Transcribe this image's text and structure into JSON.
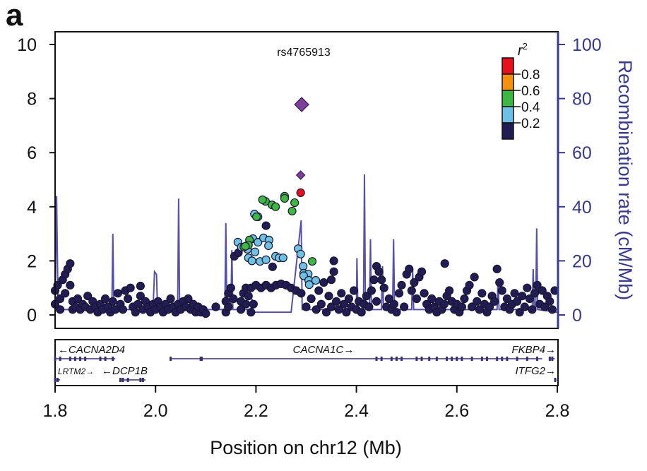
{
  "chart_data": {
    "type": "scatter",
    "panel_label": "a",
    "annotation": "rs4765913",
    "xlabel": "Position on chr12 (Mb)",
    "ylabel_right": "Recombination rate (cM/Mb)",
    "xlim": [
      1.8,
      2.8
    ],
    "ylim": [
      0,
      10.5
    ],
    "ylim_right": [
      0,
      105
    ],
    "xticks": [
      "1.8",
      "2.0",
      "2.2",
      "2.4",
      "2.6",
      "2.8"
    ],
    "yticks": [
      "0",
      "2",
      "4",
      "6",
      "8",
      "10"
    ],
    "yticks_right": [
      "0",
      "20",
      "40",
      "60",
      "80",
      "100"
    ],
    "legend": {
      "title": "r",
      "title_sup": "2",
      "placement": "top-right",
      "labels": [
        "0.8",
        "0.6",
        "0.4",
        "0.2"
      ],
      "colors": [
        "#e8101a",
        "#f5900f",
        "#3db843",
        "#6ec1e4",
        "#221c54"
      ]
    },
    "colors": {
      "diamond": "#7d3f98",
      "recomb": "#5550a8",
      "axis_right": "#3a3a8c"
    },
    "lead_snps": [
      [
        2.291,
        7.78
      ],
      [
        2.289,
        5.17
      ]
    ],
    "series": [
      {
        "r2_bin": "0.8-1.0",
        "color": "#e8101a",
        "points": [
          [
            2.289,
            4.52
          ]
        ]
      },
      {
        "r2_bin": "0.4-0.6",
        "color": "#3db843",
        "points": [
          [
            2.219,
            4.2
          ],
          [
            2.213,
            4.26
          ],
          [
            2.232,
            4.07
          ],
          [
            2.239,
            4.0
          ],
          [
            2.257,
            4.39
          ],
          [
            2.257,
            4.31
          ],
          [
            2.277,
            4.15
          ],
          [
            2.272,
            3.84
          ],
          [
            2.201,
            3.63
          ],
          [
            2.187,
            2.77
          ],
          [
            2.185,
            2.59
          ],
          [
            2.176,
            2.51
          ],
          [
            2.179,
            2.54
          ],
          [
            2.312,
            1.98
          ]
        ]
      },
      {
        "r2_bin": "0.2-0.4",
        "color": "#6ec1e4",
        "points": [
          [
            2.197,
            3.73
          ],
          [
            2.204,
            3.63
          ],
          [
            2.164,
            2.69
          ],
          [
            2.194,
            2.82
          ],
          [
            2.204,
            2.69
          ],
          [
            2.215,
            2.85
          ],
          [
            2.226,
            2.77
          ],
          [
            2.225,
            2.56
          ],
          [
            2.183,
            2.43
          ],
          [
            2.198,
            2.33
          ],
          [
            2.185,
            2.11
          ],
          [
            2.192,
            2.0
          ],
          [
            2.208,
            1.98
          ],
          [
            2.22,
            2.04
          ],
          [
            2.239,
            2.17
          ],
          [
            2.246,
            2.11
          ],
          [
            2.254,
            2.11
          ],
          [
            2.284,
            2.45
          ],
          [
            2.289,
            2.25
          ],
          [
            2.294,
            1.8
          ],
          [
            2.295,
            1.54
          ],
          [
            2.304,
            1.51
          ],
          [
            2.295,
            1.45
          ],
          [
            2.305,
            1.28
          ],
          [
            2.306,
            1.12
          ],
          [
            2.319,
            1.28
          ],
          [
            2.171,
            2.51
          ]
        ]
      },
      {
        "r2_bin": "0.0-0.2",
        "color": "#221c54",
        "points": [
          [
            1.8,
            0.9
          ],
          [
            1.8,
            0.4
          ],
          [
            1.805,
            1.1
          ],
          [
            1.81,
            0.2
          ],
          [
            1.81,
            0.6
          ],
          [
            1.815,
            1.3
          ],
          [
            1.82,
            1.5
          ],
          [
            1.82,
            0.8
          ],
          [
            1.825,
            1.7
          ],
          [
            1.83,
            1.9
          ],
          [
            1.83,
            1.1
          ],
          [
            1.835,
            0.5
          ],
          [
            1.835,
            0.2
          ],
          [
            1.84,
            0.3
          ],
          [
            1.845,
            0.6
          ],
          [
            1.85,
            0.2
          ],
          [
            1.855,
            0.4
          ],
          [
            1.86,
            0.3
          ],
          [
            1.865,
            0.7
          ],
          [
            1.87,
            0.2
          ],
          [
            1.875,
            0.5
          ],
          [
            1.88,
            0.3
          ],
          [
            1.885,
            0.1
          ],
          [
            1.89,
            0.4
          ],
          [
            1.895,
            0.2
          ],
          [
            1.9,
            0.6
          ],
          [
            1.905,
            0.3
          ],
          [
            1.91,
            0.1
          ],
          [
            1.915,
            0.5
          ],
          [
            1.92,
            0.2
          ],
          [
            1.925,
            0.8
          ],
          [
            1.93,
            0.4
          ],
          [
            1.935,
            0.2
          ],
          [
            1.94,
            0.9
          ],
          [
            1.945,
            0.6
          ],
          [
            1.95,
            1.0
          ],
          [
            1.955,
            0.3
          ],
          [
            1.96,
            0.1
          ],
          [
            1.965,
            0.4
          ],
          [
            1.97,
            0.7
          ],
          [
            1.975,
            0.2
          ],
          [
            1.98,
            0.5
          ],
          [
            1.985,
            0.3
          ],
          [
            1.99,
            0.1
          ],
          [
            1.995,
            0.4
          ],
          [
            2.0,
            0.2
          ],
          [
            2.005,
            0.5
          ],
          [
            2.01,
            0.3
          ],
          [
            2.015,
            0.1
          ],
          [
            2.02,
            0.4
          ],
          [
            2.025,
            0.2
          ],
          [
            2.03,
            0.6
          ],
          [
            2.035,
            0.3
          ],
          [
            2.04,
            0.1
          ],
          [
            2.045,
            0.4
          ],
          [
            2.05,
            0.2
          ],
          [
            2.055,
            0.5
          ],
          [
            2.06,
            0.3
          ],
          [
            2.065,
            0.6
          ],
          [
            2.07,
            0.2
          ],
          [
            2.075,
            0.4
          ],
          [
            2.08,
            0.1
          ],
          [
            2.085,
            0.3
          ],
          [
            2.09,
            0.1
          ],
          [
            2.095,
            0.2
          ],
          [
            2.1,
            0.05
          ],
          [
            1.97,
            1.07
          ],
          [
            2.12,
            0.3
          ],
          [
            2.14,
            0.1
          ],
          [
            2.14,
            0.5
          ],
          [
            2.145,
            0.8
          ],
          [
            2.15,
            1.0
          ],
          [
            2.145,
            0.3
          ],
          [
            2.155,
            0.6
          ],
          [
            2.17,
            0.2
          ],
          [
            2.17,
            0.5
          ],
          [
            2.175,
            0.8
          ],
          [
            2.18,
            1.0
          ],
          [
            2.18,
            0.4
          ],
          [
            2.185,
            0.7
          ],
          [
            2.19,
            0.1
          ],
          [
            2.195,
            0.4
          ],
          [
            2.19,
            1.0
          ],
          [
            2.2,
            1.1
          ],
          [
            2.21,
            1.0
          ],
          [
            2.22,
            1.1
          ],
          [
            2.23,
            1.0
          ],
          [
            2.24,
            1.1
          ],
          [
            2.25,
            1.15
          ],
          [
            2.26,
            1.1
          ],
          [
            2.27,
            1.0
          ],
          [
            2.28,
            0.9
          ],
          [
            2.29,
            0.8
          ],
          [
            2.157,
            2.17
          ],
          [
            2.165,
            2.3
          ],
          [
            2.22,
            3.3
          ],
          [
            2.233,
            1.78
          ],
          [
            2.3,
            0.3
          ],
          [
            2.31,
            0.6
          ],
          [
            2.32,
            0.2
          ],
          [
            2.325,
            0.9
          ],
          [
            2.33,
            0.4
          ],
          [
            2.335,
            1.2
          ],
          [
            2.34,
            0.1
          ],
          [
            2.345,
            0.7
          ],
          [
            2.35,
            1.3
          ],
          [
            2.35,
            0.3
          ],
          [
            2.355,
            1.6
          ],
          [
            2.355,
            2.0
          ],
          [
            2.36,
            0.5
          ],
          [
            2.365,
            0.2
          ],
          [
            2.37,
            0.8
          ],
          [
            2.375,
            0.4
          ],
          [
            2.38,
            0.1
          ],
          [
            2.385,
            0.6
          ],
          [
            2.39,
            0.3
          ],
          [
            2.395,
            0.9
          ],
          [
            2.4,
            0.2
          ],
          [
            2.405,
            0.5
          ],
          [
            2.41,
            0.1
          ],
          [
            2.415,
            0.4
          ],
          [
            2.42,
            0.7
          ],
          [
            2.425,
            0.3
          ],
          [
            2.43,
            0.9
          ],
          [
            2.435,
            1.3
          ],
          [
            2.44,
            1.8
          ],
          [
            2.44,
            0.5
          ],
          [
            2.445,
            1.6
          ],
          [
            2.45,
            1.3
          ],
          [
            2.455,
            1.0
          ],
          [
            2.46,
            0.3
          ],
          [
            2.465,
            0.6
          ],
          [
            2.47,
            0.2
          ],
          [
            2.475,
            0.4
          ],
          [
            2.48,
            0.1
          ],
          [
            2.485,
            0.8
          ],
          [
            2.49,
            1.1
          ],
          [
            2.495,
            0.3
          ],
          [
            2.5,
            1.5
          ],
          [
            2.505,
            1.7
          ],
          [
            2.51,
            0.9
          ],
          [
            2.515,
            1.2
          ],
          [
            2.52,
            0.6
          ],
          [
            2.525,
            1.4
          ],
          [
            2.53,
            1.6
          ],
          [
            2.535,
            0.8
          ],
          [
            2.54,
            0.4
          ],
          [
            2.545,
            0.2
          ],
          [
            2.55,
            0.6
          ],
          [
            2.555,
            0.3
          ],
          [
            2.56,
            0.1
          ],
          [
            2.565,
            0.5
          ],
          [
            2.57,
            0.2
          ],
          [
            2.576,
            1.9
          ],
          [
            2.575,
            0.4
          ],
          [
            2.58,
            0.7
          ],
          [
            2.585,
            0.9
          ],
          [
            2.59,
            0.5
          ],
          [
            2.595,
            0.2
          ],
          [
            2.6,
            0.4
          ],
          [
            2.605,
            0.1
          ],
          [
            2.61,
            0.3
          ],
          [
            2.615,
            0.6
          ],
          [
            2.62,
            0.9
          ],
          [
            2.625,
            1.1
          ],
          [
            2.63,
            0.3
          ],
          [
            2.635,
            1.4
          ],
          [
            2.64,
            0.5
          ],
          [
            2.645,
            0.2
          ],
          [
            2.65,
            0.8
          ],
          [
            2.655,
            0.4
          ],
          [
            2.66,
            0.1
          ],
          [
            2.665,
            0.3
          ],
          [
            2.67,
            0.7
          ],
          [
            2.675,
            0.5
          ],
          [
            2.68,
            1.7
          ],
          [
            2.685,
            1.2
          ],
          [
            2.69,
            0.9
          ],
          [
            2.695,
            0.3
          ],
          [
            2.7,
            0.6
          ],
          [
            2.705,
            0.2
          ],
          [
            2.71,
            0.4
          ],
          [
            2.715,
            0.8
          ],
          [
            2.72,
            0.5
          ],
          [
            2.725,
            0.1
          ],
          [
            2.73,
            0.7
          ],
          [
            2.735,
            0.3
          ],
          [
            2.74,
            1.0
          ],
          [
            2.745,
            0.6
          ],
          [
            2.75,
            0.2
          ],
          [
            2.755,
            0.8
          ],
          [
            2.76,
            1.1
          ],
          [
            2.765,
            0.4
          ],
          [
            2.77,
            0.9
          ],
          [
            2.775,
            0.3
          ],
          [
            2.78,
            0.7
          ],
          [
            2.785,
            0.5
          ],
          [
            2.79,
            0.2
          ],
          [
            2.795,
            0.9
          ]
        ]
      }
    ],
    "recombination": [
      [
        1.8,
        1
      ],
      [
        1.803,
        44
      ],
      [
        1.806,
        2
      ],
      [
        1.913,
        2
      ],
      [
        1.915,
        30
      ],
      [
        1.917,
        2
      ],
      [
        1.995,
        2
      ],
      [
        1.998,
        16
      ],
      [
        2.002,
        15
      ],
      [
        2.004,
        2
      ],
      [
        2.044,
        2
      ],
      [
        2.046,
        43
      ],
      [
        2.048,
        2
      ],
      [
        2.138,
        2
      ],
      [
        2.14,
        34
      ],
      [
        2.142,
        2
      ],
      [
        2.15,
        2
      ],
      [
        2.152,
        24
      ],
      [
        2.154,
        2
      ],
      [
        2.19,
        2
      ],
      [
        2.192,
        6
      ],
      [
        2.194,
        1
      ],
      [
        2.27,
        1
      ],
      [
        2.29,
        35
      ],
      [
        2.292,
        2
      ],
      [
        2.4,
        2
      ],
      [
        2.401,
        21
      ],
      [
        2.403,
        2
      ],
      [
        2.414,
        2
      ],
      [
        2.416,
        52
      ],
      [
        2.418,
        2
      ],
      [
        2.426,
        2
      ],
      [
        2.428,
        28
      ],
      [
        2.43,
        2
      ],
      [
        2.45,
        2
      ],
      [
        2.452,
        18
      ],
      [
        2.454,
        2
      ],
      [
        2.472,
        2
      ],
      [
        2.474,
        28
      ],
      [
        2.476,
        2
      ],
      [
        2.51,
        2
      ],
      [
        2.512,
        17
      ],
      [
        2.514,
        2
      ],
      [
        2.68,
        2
      ],
      [
        2.682,
        13
      ],
      [
        2.684,
        2
      ],
      [
        2.75,
        2
      ],
      [
        2.752,
        17
      ],
      [
        2.754,
        2
      ],
      [
        2.757,
        2
      ],
      [
        2.759,
        32
      ],
      [
        2.761,
        2
      ],
      [
        2.8,
        1
      ]
    ],
    "genes": [
      {
        "name": "CACNA2D4",
        "strand": "-",
        "start": 1.8,
        "end": 1.92,
        "row": 0,
        "exons": [
          1.8,
          1.81,
          1.83,
          1.84,
          1.85,
          1.86,
          1.89,
          1.9,
          1.915
        ]
      },
      {
        "name": "CACNA1C",
        "strand": "+",
        "start": 2.03,
        "end": 2.77,
        "row": 0,
        "exons": [
          2.03,
          2.09,
          2.092,
          2.44,
          2.45,
          2.47,
          2.48,
          2.49,
          2.52,
          2.53,
          2.545,
          2.56,
          2.58,
          2.59,
          2.6,
          2.61,
          2.63,
          2.65,
          2.66,
          2.68,
          2.69,
          2.7,
          2.72,
          2.74,
          2.76
        ]
      },
      {
        "name": "FKBP4",
        "strand": "+",
        "start": 2.785,
        "end": 2.795,
        "row": 0,
        "exons": [
          2.785,
          2.79
        ]
      },
      {
        "name": "LRTM2",
        "strand": "+",
        "start": 1.8,
        "end": 1.81,
        "row": 1,
        "exons": [
          1.8,
          1.805
        ]
      },
      {
        "name": "DCP1B",
        "strand": "-",
        "start": 1.93,
        "end": 1.98,
        "row": 1,
        "exons": [
          1.93,
          1.935,
          1.945,
          1.97,
          1.975
        ]
      },
      {
        "name": "ITFG2",
        "strand": "+",
        "start": 2.798,
        "end": 2.8,
        "row": 1,
        "exons": [
          2.799
        ]
      }
    ]
  }
}
